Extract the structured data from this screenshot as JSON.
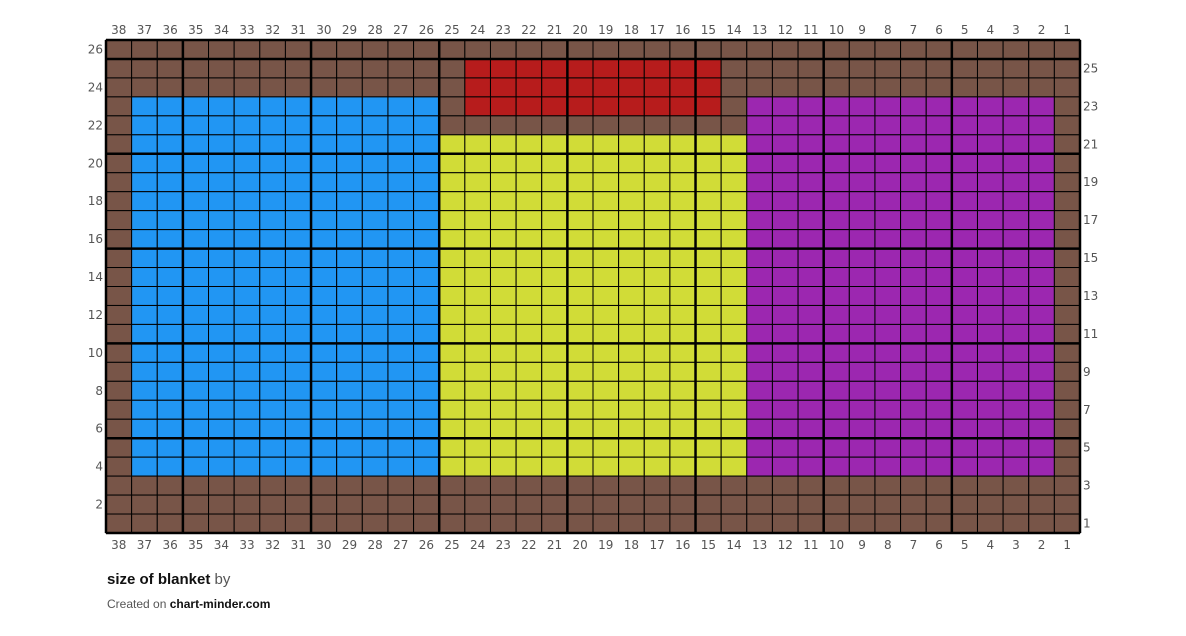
{
  "chart_data": {
    "type": "heatmap",
    "columns": 38,
    "rows": 26,
    "column_labels_right_to_left": true,
    "palette": {
      "B": "#785548",
      "U": "#2196f3",
      "Y": "#d1dc37",
      "R": "#b71c1c",
      "P": "#9c27b0"
    },
    "grid_rows_top_to_bottom": [
      "BBBBBBBBBBBBBBBBBBBBBBBBBBBBBBBBBBBBBB",
      "BBBBBBBBBBBBBBRRRRRRRRRRBBBBBBBBBBBBBB",
      "BBBBBBBBBBBBBBRRRRRRRRRRBBBBBBBBBBBBBB",
      "BUUUUUUUUUUUUBRRRRRRRRRRBPPPPPPPPPPPPB",
      "BUUUUUUUUUUUUBBBBBBBBBBBBPPPPPPPPPPPPB",
      "BUUUUUUUUUUUUYYYYYYYYYYYYPPPPPPPPPPPPB",
      "BUUUUUUUUUUUUYYYYYYYYYYYYPPPPPPPPPPPPB",
      "BUUUUUUUUUUUUYYYYYYYYYYYYPPPPPPPPPPPPB",
      "BUUUUUUUUUUUUYYYYYYYYYYYYPPPPPPPPPPPPB",
      "BUUUUUUUUUUUUYYYYYYYYYYYYPPPPPPPPPPPPB",
      "BUUUUUUUUUUUUYYYYYYYYYYYYPPPPPPPPPPPPB",
      "BUUUUUUUUUUUUYYYYYYYYYYYYPPPPPPPPPPPPB",
      "BUUUUUUUUUUUUYYYYYYYYYYYYPPPPPPPPPPPPB",
      "BUUUUUUUUUUUUYYYYYYYYYYYYPPPPPPPPPPPPB",
      "BUUUUUUUUUUUUYYYYYYYYYYYYPPPPPPPPPPPPB",
      "BUUUUUUUUUUUUYYYYYYYYYYYYPPPPPPPPPPPPB",
      "BUUUUUUUUUUUUYYYYYYYYYYYYPPPPPPPPPPPPB",
      "BUUUUUUUUUUUUYYYYYYYYYYYYPPPPPPPPPPPPB",
      "BUUUUUUUUUUUUYYYYYYYYYYYYPPPPPPPPPPPPB",
      "BUUUUUUUUUUUUYYYYYYYYYYYYPPPPPPPPPPPPB",
      "BUUUUUUUUUUUUYYYYYYYYYYYYPPPPPPPPPPPPB",
      "BUUUUUUUUUUUUYYYYYYYYYYYYPPPPPPPPPPPPB",
      "BUUUUUUUUUUUUYYYYYYYYYYYYPPPPPPPPPPPPB",
      "BBBBBBBBBBBBBBBBBBBBBBBBBBBBBBBBBBBBBB",
      "BBBBBBBBBBBBBBBBBBBBBBBBBBBBBBBBBBBBBB",
      "BBBBBBBBBBBBBBBBBBBBBBBBBBBBBBBBBBBBBB"
    ],
    "left_row_labels": [
      26,
      24,
      22,
      20,
      18,
      16,
      14,
      12,
      10,
      8,
      6,
      4,
      2
    ],
    "right_row_labels": [
      25,
      23,
      21,
      19,
      17,
      15,
      13,
      11,
      9,
      7,
      5,
      3,
      1
    ],
    "major_grid_every": 5
  },
  "footer": {
    "title": "size of blanket",
    "by": "by",
    "created_on": "Created on",
    "site": "chart-minder.com"
  }
}
